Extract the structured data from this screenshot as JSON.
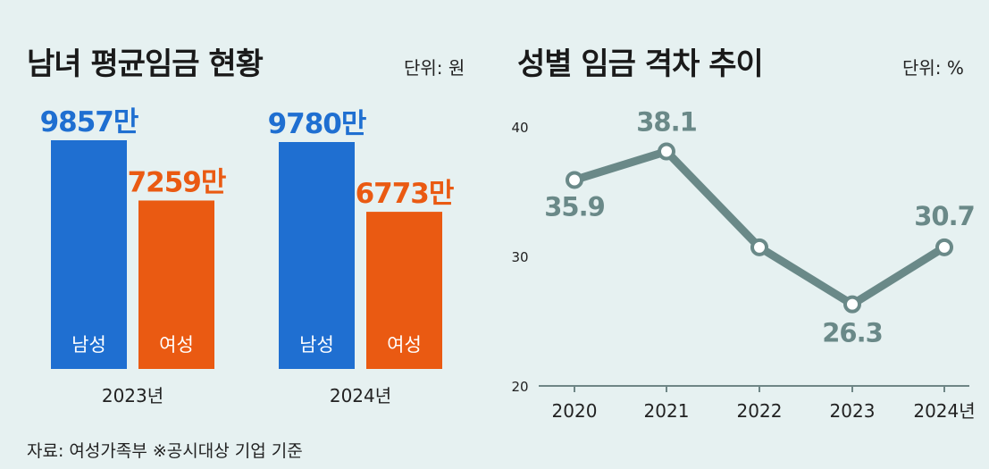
{
  "left_chart": {
    "title": "남녀 평균임금 현황",
    "unit": "단위: 원"
  },
  "right_chart": {
    "title": "성별 임금 격차 추이",
    "unit": "단위: %"
  },
  "source": "자료: 여성가족부 ※공시대상 기업 기준",
  "colors": {
    "male": "#1f6fd1",
    "female": "#ea5a12",
    "line": "#6a8988",
    "text": "#222222"
  },
  "chart_data": [
    {
      "type": "bar",
      "categories": [
        "2023년",
        "2024년"
      ],
      "series": [
        {
          "name": "남성",
          "values": [
            9857,
            9780
          ],
          "labels": [
            "9857만",
            "9780만"
          ]
        },
        {
          "name": "여성",
          "values": [
            7259,
            6773
          ],
          "labels": [
            "7259만",
            "6773만"
          ]
        }
      ],
      "ylim": [
        0,
        9857
      ]
    },
    {
      "type": "line",
      "x": [
        "2020",
        "2021",
        "2022",
        "2023",
        "2024년"
      ],
      "y": [
        35.9,
        38.1,
        30.7,
        26.3,
        30.7
      ],
      "point_labels": [
        "35.9",
        "38.1",
        "",
        "26.3",
        "30.7"
      ],
      "yticks": [
        "20",
        "30",
        "40"
      ],
      "ylim": [
        20,
        40
      ],
      "grid": false
    }
  ]
}
